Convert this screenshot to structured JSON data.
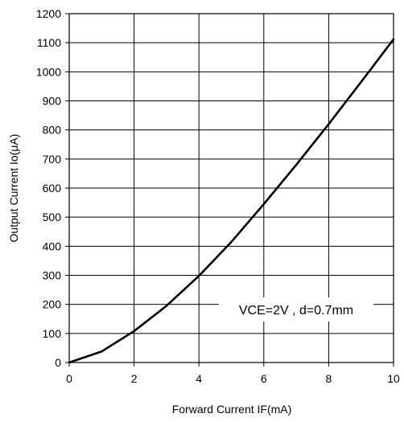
{
  "chart_data": {
    "type": "line",
    "title": "",
    "xlabel": "Forward Current IF(mA)",
    "ylabel": "Output Current Io(μA)",
    "xlim": [
      0,
      10
    ],
    "ylim": [
      0,
      1200
    ],
    "x_ticks": [
      0,
      2,
      4,
      6,
      8,
      10
    ],
    "y_ticks": [
      0,
      100,
      200,
      300,
      400,
      500,
      600,
      700,
      800,
      900,
      1000,
      1100,
      1200
    ],
    "x_tick_labels": [
      "0",
      "2",
      "4",
      "6",
      "8",
      "10"
    ],
    "y_tick_labels": [
      "0",
      "100",
      "200",
      "300",
      "400",
      "500",
      "600",
      "700",
      "800",
      "900",
      "1000",
      "1100",
      "1200"
    ],
    "grid": true,
    "annotation": "VCE=2V , d=0.7mm",
    "series": [
      {
        "color": "#000000",
        "x": [
          0,
          1,
          2,
          3,
          4,
          5,
          6,
          7,
          8,
          9,
          10
        ],
        "y": [
          0,
          38,
          108,
          195,
          298,
          415,
          545,
          680,
          820,
          965,
          1112
        ]
      }
    ]
  }
}
